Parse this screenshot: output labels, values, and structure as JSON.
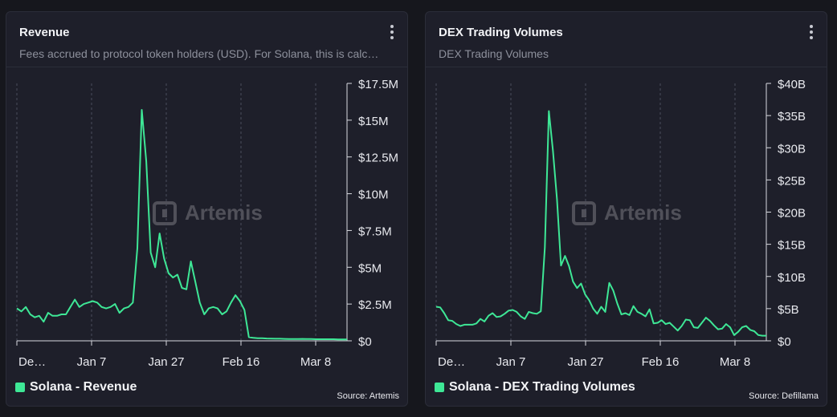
{
  "panels": [
    {
      "title": "Revenue",
      "subtitle": "Fees accrued to protocol token holders (USD). For Solana, this is calc…",
      "legend_label": "Solana - Revenue",
      "source": "Source: Artemis",
      "watermark": "Artemis",
      "line_color": "#3ee796",
      "chart_data": {
        "type": "line",
        "x_ticks": [
          "De…",
          "Jan 7",
          "Jan 27",
          "Feb 16",
          "Mar 8"
        ],
        "y_ticks": [
          "$17.5M",
          "$15M",
          "$12.5M",
          "$10M",
          "$7.5M",
          "$5M",
          "$2.5M",
          "$0"
        ],
        "ylim": [
          0,
          17.5
        ],
        "unit": "M USD",
        "grid": true,
        "series": [
          {
            "name": "Solana - Revenue",
            "values": [
              2.2,
              2.0,
              2.3,
              1.8,
              1.6,
              1.7,
              1.3,
              1.9,
              1.7,
              1.7,
              1.8,
              1.8,
              2.3,
              2.8,
              2.3,
              2.5,
              2.6,
              2.7,
              2.6,
              2.3,
              2.2,
              2.3,
              2.5,
              1.9,
              2.2,
              2.3,
              2.6,
              6.3,
              15.7,
              12.2,
              6.0,
              5.0,
              7.3,
              5.6,
              4.6,
              4.3,
              4.5,
              3.6,
              3.5,
              5.4,
              4.0,
              2.6,
              1.8,
              2.2,
              2.3,
              2.2,
              1.8,
              2.0,
              2.6,
              3.1,
              2.7,
              2.1,
              0.25,
              0.2,
              0.18,
              0.18,
              0.16,
              0.15,
              0.14,
              0.14,
              0.13,
              0.12,
              0.12,
              0.12,
              0.13,
              0.12,
              0.12,
              0.11,
              0.11,
              0.11,
              0.11,
              0.11,
              0.1,
              0.1,
              0.1
            ]
          }
        ]
      }
    },
    {
      "title": "DEX Trading Volumes",
      "subtitle": "DEX Trading Volumes",
      "legend_label": "Solana - DEX Trading Volumes",
      "source": "Source: Defillama",
      "watermark": "Artemis",
      "line_color": "#3ee796",
      "chart_data": {
        "type": "line",
        "x_ticks": [
          "De…",
          "Jan 7",
          "Jan 27",
          "Feb 16",
          "Mar 8"
        ],
        "y_ticks": [
          "$40B",
          "$35B",
          "$30B",
          "$25B",
          "$20B",
          "$15B",
          "$10B",
          "$5B",
          "$0"
        ],
        "ylim": [
          0,
          40
        ],
        "unit": "B USD",
        "grid": true,
        "series": [
          {
            "name": "Solana - DEX Trading Volumes",
            "values": [
              5.3,
              5.2,
              4.3,
              3.2,
              3.1,
              2.6,
              2.3,
              2.5,
              2.5,
              2.5,
              2.7,
              3.4,
              3.0,
              3.9,
              4.3,
              3.7,
              3.8,
              4.2,
              4.7,
              4.8,
              4.5,
              3.8,
              3.4,
              4.5,
              4.3,
              4.2,
              4.6,
              14.5,
              35.7,
              29.5,
              22.0,
              11.7,
              13.2,
              11.6,
              9.2,
              8.2,
              8.9,
              7.2,
              6.3,
              5.0,
              4.2,
              5.3,
              4.5,
              9.0,
              7.8,
              5.8,
              4.1,
              4.3,
              4.0,
              5.4,
              4.5,
              4.2,
              3.8,
              4.9,
              2.7,
              2.8,
              3.2,
              2.6,
              2.8,
              2.2,
              1.6,
              2.3,
              3.3,
              3.2,
              2.1,
              2.0,
              2.8,
              3.6,
              3.1,
              2.4,
              1.8,
              1.9,
              2.6,
              2.1,
              0.9,
              1.4,
              2.1,
              2.3,
              1.7,
              1.5,
              0.9,
              0.8,
              0.8
            ]
          }
        ]
      }
    }
  ]
}
